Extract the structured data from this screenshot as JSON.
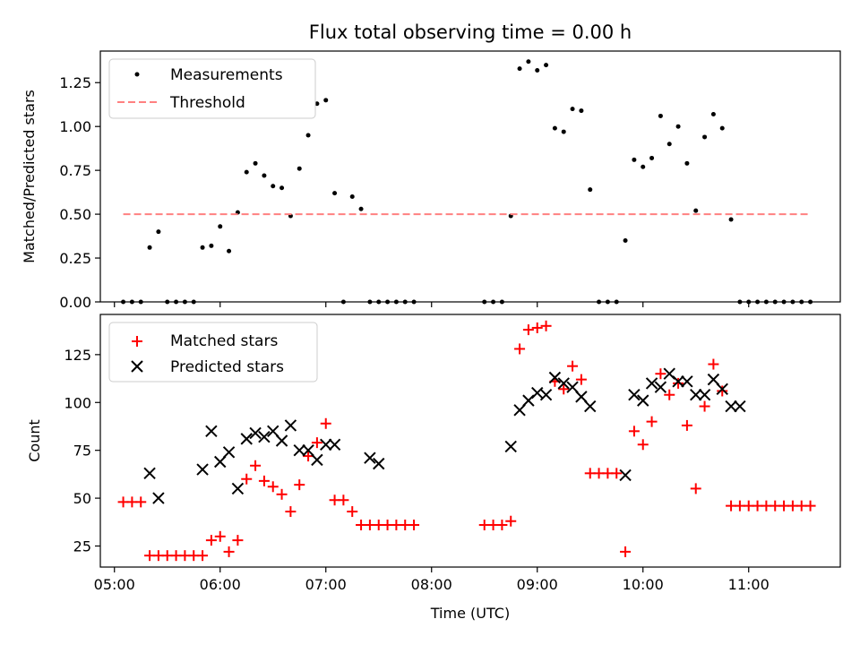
{
  "chart_data": [
    {
      "type": "scatter",
      "title": "Flux total observing time = 0.00 h",
      "xlabel": "",
      "ylabel": "Matched/Predicted stars",
      "xlim": [
        "04:52",
        "11:52"
      ],
      "ylim": [
        0,
        1.43
      ],
      "yticks": [
        "0.00",
        "0.25",
        "0.50",
        "0.75",
        "1.00",
        "1.25"
      ],
      "xticks": [
        "05:00",
        "06:00",
        "07:00",
        "08:00",
        "09:00",
        "10:00",
        "11:00"
      ],
      "show_xtick_labels": false,
      "grid": false,
      "legend": "top-left",
      "series": [
        {
          "name": "Measurements",
          "kind": "points",
          "color": "#000000",
          "x": [
            "05:05",
            "05:10",
            "05:15",
            "05:20",
            "05:25",
            "05:30",
            "05:35",
            "05:40",
            "05:45",
            "05:50",
            "05:55",
            "06:00",
            "06:05",
            "06:10",
            "06:15",
            "06:20",
            "06:25",
            "06:30",
            "06:35",
            "06:40",
            "06:45",
            "06:50",
            "06:55",
            "07:00",
            "07:05",
            "07:10",
            "07:15",
            "07:20",
            "07:25",
            "07:30",
            "07:35",
            "07:40",
            "07:45",
            "07:50",
            "08:30",
            "08:35",
            "08:40",
            "08:45",
            "08:50",
            "08:55",
            "09:00",
            "09:05",
            "09:10",
            "09:15",
            "09:20",
            "09:25",
            "09:30",
            "09:35",
            "09:40",
            "09:45",
            "09:50",
            "09:55",
            "10:00",
            "10:05",
            "10:10",
            "10:15",
            "10:20",
            "10:25",
            "10:30",
            "10:35",
            "10:40",
            "10:45",
            "10:50",
            "10:55",
            "11:00",
            "11:05",
            "11:10",
            "11:15",
            "11:20",
            "11:25",
            "11:30",
            "11:35"
          ],
          "y": [
            0,
            0,
            0,
            0.31,
            0.4,
            0,
            0,
            0,
            0,
            0.31,
            0.32,
            0.43,
            0.29,
            0.51,
            0.74,
            0.79,
            0.72,
            0.66,
            0.65,
            0.49,
            0.76,
            0.95,
            1.13,
            1.15,
            0.62,
            0,
            0.6,
            0.53,
            0,
            0,
            0,
            0,
            0,
            0,
            0,
            0,
            0,
            0.49,
            1.33,
            1.37,
            1.32,
            1.35,
            0.99,
            0.97,
            1.1,
            1.09,
            0.64,
            0,
            0,
            0,
            0.35,
            0.81,
            0.77,
            0.82,
            1.06,
            0.9,
            1.0,
            0.79,
            0.52,
            0.94,
            1.07,
            0.99,
            0.47,
            0,
            0,
            0,
            0,
            0,
            0,
            0,
            0,
            0
          ]
        },
        {
          "name": "Threshold",
          "kind": "dashed-line",
          "color": "#ff8080",
          "x": [
            "05:05",
            "11:35"
          ],
          "y": [
            0.5,
            0.5
          ]
        }
      ]
    },
    {
      "type": "scatter",
      "title": "",
      "xlabel": "Time (UTC)",
      "ylabel": "Count",
      "xlim": [
        "04:52",
        "11:52"
      ],
      "ylim": [
        14,
        146
      ],
      "yticks": [
        "25",
        "50",
        "75",
        "100",
        "125"
      ],
      "xticks": [
        "05:00",
        "06:00",
        "07:00",
        "08:00",
        "09:00",
        "10:00",
        "11:00"
      ],
      "show_xtick_labels": true,
      "grid": false,
      "legend": "top-left",
      "series": [
        {
          "name": "Matched stars",
          "marker": "plus",
          "color": "#ff0000",
          "x": [
            "05:05",
            "05:10",
            "05:15",
            "05:20",
            "05:25",
            "05:30",
            "05:35",
            "05:40",
            "05:45",
            "05:50",
            "05:55",
            "06:00",
            "06:05",
            "06:10",
            "06:15",
            "06:20",
            "06:25",
            "06:30",
            "06:35",
            "06:40",
            "06:45",
            "06:50",
            "06:55",
            "07:00",
            "07:05",
            "07:10",
            "07:15",
            "07:20",
            "07:25",
            "07:30",
            "07:35",
            "07:40",
            "07:45",
            "07:50",
            "08:30",
            "08:35",
            "08:40",
            "08:45",
            "08:50",
            "08:55",
            "09:00",
            "09:05",
            "09:10",
            "09:15",
            "09:20",
            "09:25",
            "09:30",
            "09:35",
            "09:40",
            "09:45",
            "09:50",
            "09:55",
            "10:00",
            "10:05",
            "10:10",
            "10:15",
            "10:20",
            "10:25",
            "10:30",
            "10:35",
            "10:40",
            "10:45",
            "10:50",
            "10:55",
            "11:00",
            "11:05",
            "11:10",
            "11:15",
            "11:20",
            "11:25",
            "11:30",
            "11:35"
          ],
          "y": [
            48,
            48,
            48,
            20,
            20,
            20,
            20,
            20,
            20,
            20,
            28,
            30,
            22,
            28,
            60,
            67,
            59,
            56,
            52,
            43,
            57,
            72,
            79,
            89,
            49,
            49,
            43,
            36,
            36,
            36,
            36,
            36,
            36,
            36,
            36,
            36,
            36,
            38,
            128,
            138,
            139,
            140,
            111,
            107,
            119,
            112,
            63,
            63,
            63,
            63,
            22,
            85,
            78,
            90,
            115,
            104,
            110,
            88,
            55,
            98,
            120,
            106,
            46,
            46,
            46,
            46,
            46,
            46,
            46,
            46,
            46,
            46
          ]
        },
        {
          "name": "Predicted stars",
          "marker": "x",
          "color": "#000000",
          "x": [
            "05:20",
            "05:25",
            "05:50",
            "05:55",
            "06:00",
            "06:05",
            "06:10",
            "06:15",
            "06:20",
            "06:25",
            "06:30",
            "06:35",
            "06:40",
            "06:45",
            "06:50",
            "06:55",
            "07:00",
            "07:05",
            "07:25",
            "07:30",
            "08:45",
            "08:50",
            "08:55",
            "09:00",
            "09:05",
            "09:10",
            "09:15",
            "09:20",
            "09:25",
            "09:30",
            "09:50",
            "09:55",
            "10:00",
            "10:05",
            "10:10",
            "10:15",
            "10:20",
            "10:25",
            "10:30",
            "10:35",
            "10:40",
            "10:45",
            "10:50",
            "10:55"
          ],
          "y": [
            63,
            50,
            65,
            85,
            69,
            74,
            55,
            81,
            84,
            82,
            85,
            80,
            88,
            75,
            75,
            70,
            78,
            78,
            71,
            68,
            77,
            96,
            101,
            105,
            104,
            113,
            110,
            108,
            103,
            98,
            62,
            104,
            101,
            110,
            108,
            115,
            111,
            111,
            104,
            104,
            112,
            107,
            98,
            98
          ]
        }
      ]
    }
  ]
}
